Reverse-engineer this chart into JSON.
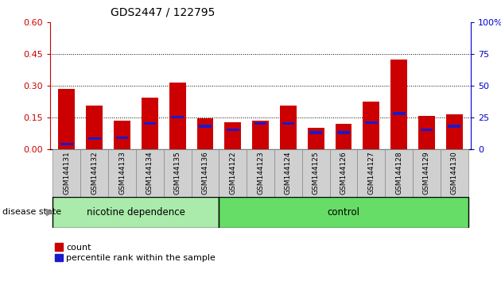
{
  "title": "GDS2447 / 122795",
  "categories": [
    "GSM144131",
    "GSM144132",
    "GSM144133",
    "GSM144134",
    "GSM144135",
    "GSM144136",
    "GSM144122",
    "GSM144123",
    "GSM144124",
    "GSM144125",
    "GSM144126",
    "GSM144127",
    "GSM144128",
    "GSM144129",
    "GSM144130"
  ],
  "count_values": [
    0.285,
    0.205,
    0.135,
    0.245,
    0.315,
    0.145,
    0.125,
    0.135,
    0.205,
    0.1,
    0.12,
    0.225,
    0.425,
    0.155,
    0.165
  ],
  "percentile_values": [
    4,
    8,
    9,
    20,
    25,
    18,
    15,
    20,
    20,
    13,
    13,
    21,
    28,
    15,
    18
  ],
  "group1_count": 6,
  "group2_count": 9,
  "group1_label": "nicotine dependence",
  "group2_label": "control",
  "disease_state_label": "disease state",
  "ylim_left": [
    0,
    0.6
  ],
  "ylim_right": [
    0,
    100
  ],
  "yticks_left": [
    0,
    0.15,
    0.3,
    0.45,
    0.6
  ],
  "yticks_right": [
    0,
    25,
    50,
    75,
    100
  ],
  "bar_color_red": "#cc0000",
  "bar_color_blue": "#1a1acc",
  "group1_bg": "#aaeaaa",
  "group2_bg": "#66dd66",
  "tick_bg": "#d0d0d0",
  "legend_count": "count",
  "legend_percentile": "percentile rank within the sample",
  "right_axis_color": "#0000cc",
  "left_axis_color": "#cc0000",
  "bar_width": 0.6
}
